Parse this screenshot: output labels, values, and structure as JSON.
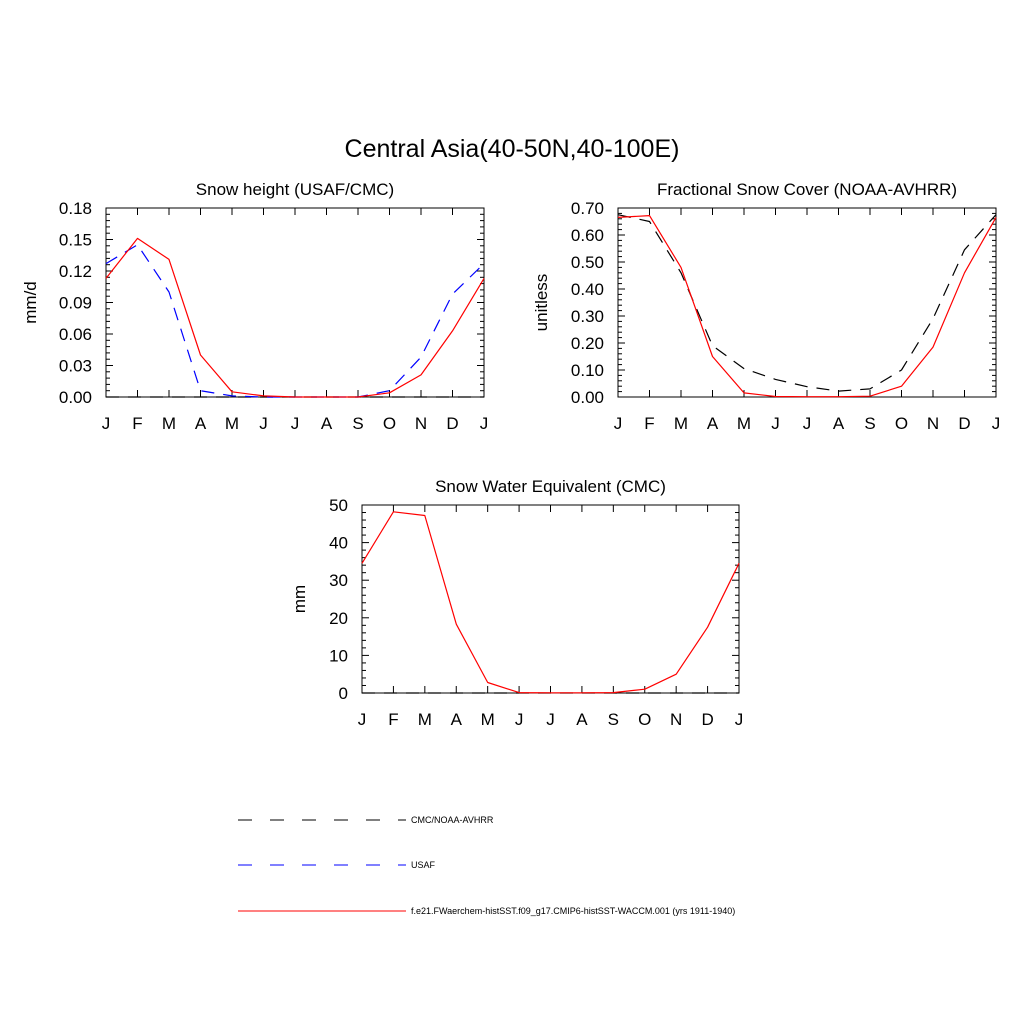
{
  "main_title": "Central Asia(40-50N,40-100E)",
  "colors": {
    "model": "#ff0000",
    "obs": "#000000",
    "usaf": "#0000ff",
    "axis": "#000000"
  },
  "legend": [
    {
      "label": "CMC/NOAA-AVHRR",
      "style": "dashed",
      "color": "#000000"
    },
    {
      "label": "USAF",
      "style": "dashed",
      "color": "#0000ff"
    },
    {
      "label": "f.e21.FWaerchem-histSST.f09_g17.CMIP6-histSST-WACCM.001 (yrs 1911-1940)",
      "style": "solid",
      "color": "#ff0000"
    }
  ],
  "chart_data": [
    {
      "id": "snow-height",
      "type": "line",
      "title": "Snow height (USAF/CMC)",
      "ylabel": "mm/d",
      "categories": [
        "J",
        "F",
        "M",
        "A",
        "M",
        "J",
        "J",
        "A",
        "S",
        "O",
        "N",
        "D",
        "J"
      ],
      "ylim": [
        0,
        0.18
      ],
      "yticks": [
        "0.00",
        "0.03",
        "0.06",
        "0.09",
        "0.12",
        "0.15",
        "0.18"
      ],
      "series": [
        {
          "name": "CMC/NOAA-AVHRR",
          "style": "dashed",
          "color": "#000000",
          "values": [
            0,
            0,
            0,
            0,
            0,
            0,
            0,
            0,
            0,
            0,
            0,
            0,
            0
          ]
        },
        {
          "name": "USAF",
          "style": "dashed",
          "color": "#0000ff",
          "values": [
            0.127,
            0.145,
            0.1,
            0.006,
            0.001,
            0,
            0,
            0,
            0,
            0.006,
            0.038,
            0.098,
            0.127
          ]
        },
        {
          "name": "f.e21.FWaerchem-histSST.f09_g17.CMIP6-histSST-WACCM.001 (yrs 1911-1940)",
          "style": "solid",
          "color": "#ff0000",
          "values": [
            0.113,
            0.151,
            0.131,
            0.04,
            0.005,
            0.001,
            0,
            0,
            0,
            0.004,
            0.021,
            0.063,
            0.113
          ]
        }
      ]
    },
    {
      "id": "fractional-snow-cover",
      "type": "line",
      "title": "Fractional Snow Cover (NOAA-AVHRR)",
      "ylabel": "unitless",
      "categories": [
        "J",
        "F",
        "M",
        "A",
        "M",
        "J",
        "J",
        "A",
        "S",
        "O",
        "N",
        "D",
        "J"
      ],
      "ylim": [
        0,
        0.7
      ],
      "yticks": [
        "0.00",
        "0.10",
        "0.20",
        "0.30",
        "0.40",
        "0.50",
        "0.60",
        "0.70"
      ],
      "series": [
        {
          "name": "CMC/NOAA-AVHRR",
          "style": "dashed",
          "color": "#000000",
          "values": [
            0.675,
            0.65,
            0.46,
            0.19,
            0.105,
            0.065,
            0.038,
            0.022,
            0.03,
            0.1,
            0.29,
            0.545,
            0.675
          ]
        },
        {
          "name": "f.e21.FWaerchem-histSST.f09_g17.CMIP6-histSST-WACCM.001 (yrs 1911-1940)",
          "style": "solid",
          "color": "#ff0000",
          "values": [
            0.665,
            0.672,
            0.48,
            0.15,
            0.015,
            0.002,
            0.001,
            0.001,
            0.003,
            0.04,
            0.185,
            0.46,
            0.665
          ]
        }
      ]
    },
    {
      "id": "snow-water-equivalent",
      "type": "line",
      "title": "Snow Water Equivalent (CMC)",
      "ylabel": "mm",
      "categories": [
        "J",
        "F",
        "M",
        "A",
        "M",
        "J",
        "J",
        "A",
        "S",
        "O",
        "N",
        "D",
        "J"
      ],
      "ylim": [
        0,
        50
      ],
      "yticks": [
        "0",
        "10",
        "20",
        "30",
        "40",
        "50"
      ],
      "series": [
        {
          "name": "CMC/NOAA-AVHRR",
          "style": "dashed",
          "color": "#000000",
          "values": [
            0,
            0,
            0,
            0,
            0,
            0,
            0,
            0,
            0,
            0,
            0,
            0,
            0
          ]
        },
        {
          "name": "f.e21.FWaerchem-histSST.f09_g17.CMIP6-histSST-WACCM.001 (yrs 1911-1940)",
          "style": "solid",
          "color": "#ff0000",
          "values": [
            34.5,
            48.2,
            47.2,
            18.3,
            2.8,
            0.1,
            0.05,
            0.05,
            0.1,
            1,
            5,
            17.5,
            34.5
          ]
        }
      ]
    }
  ]
}
